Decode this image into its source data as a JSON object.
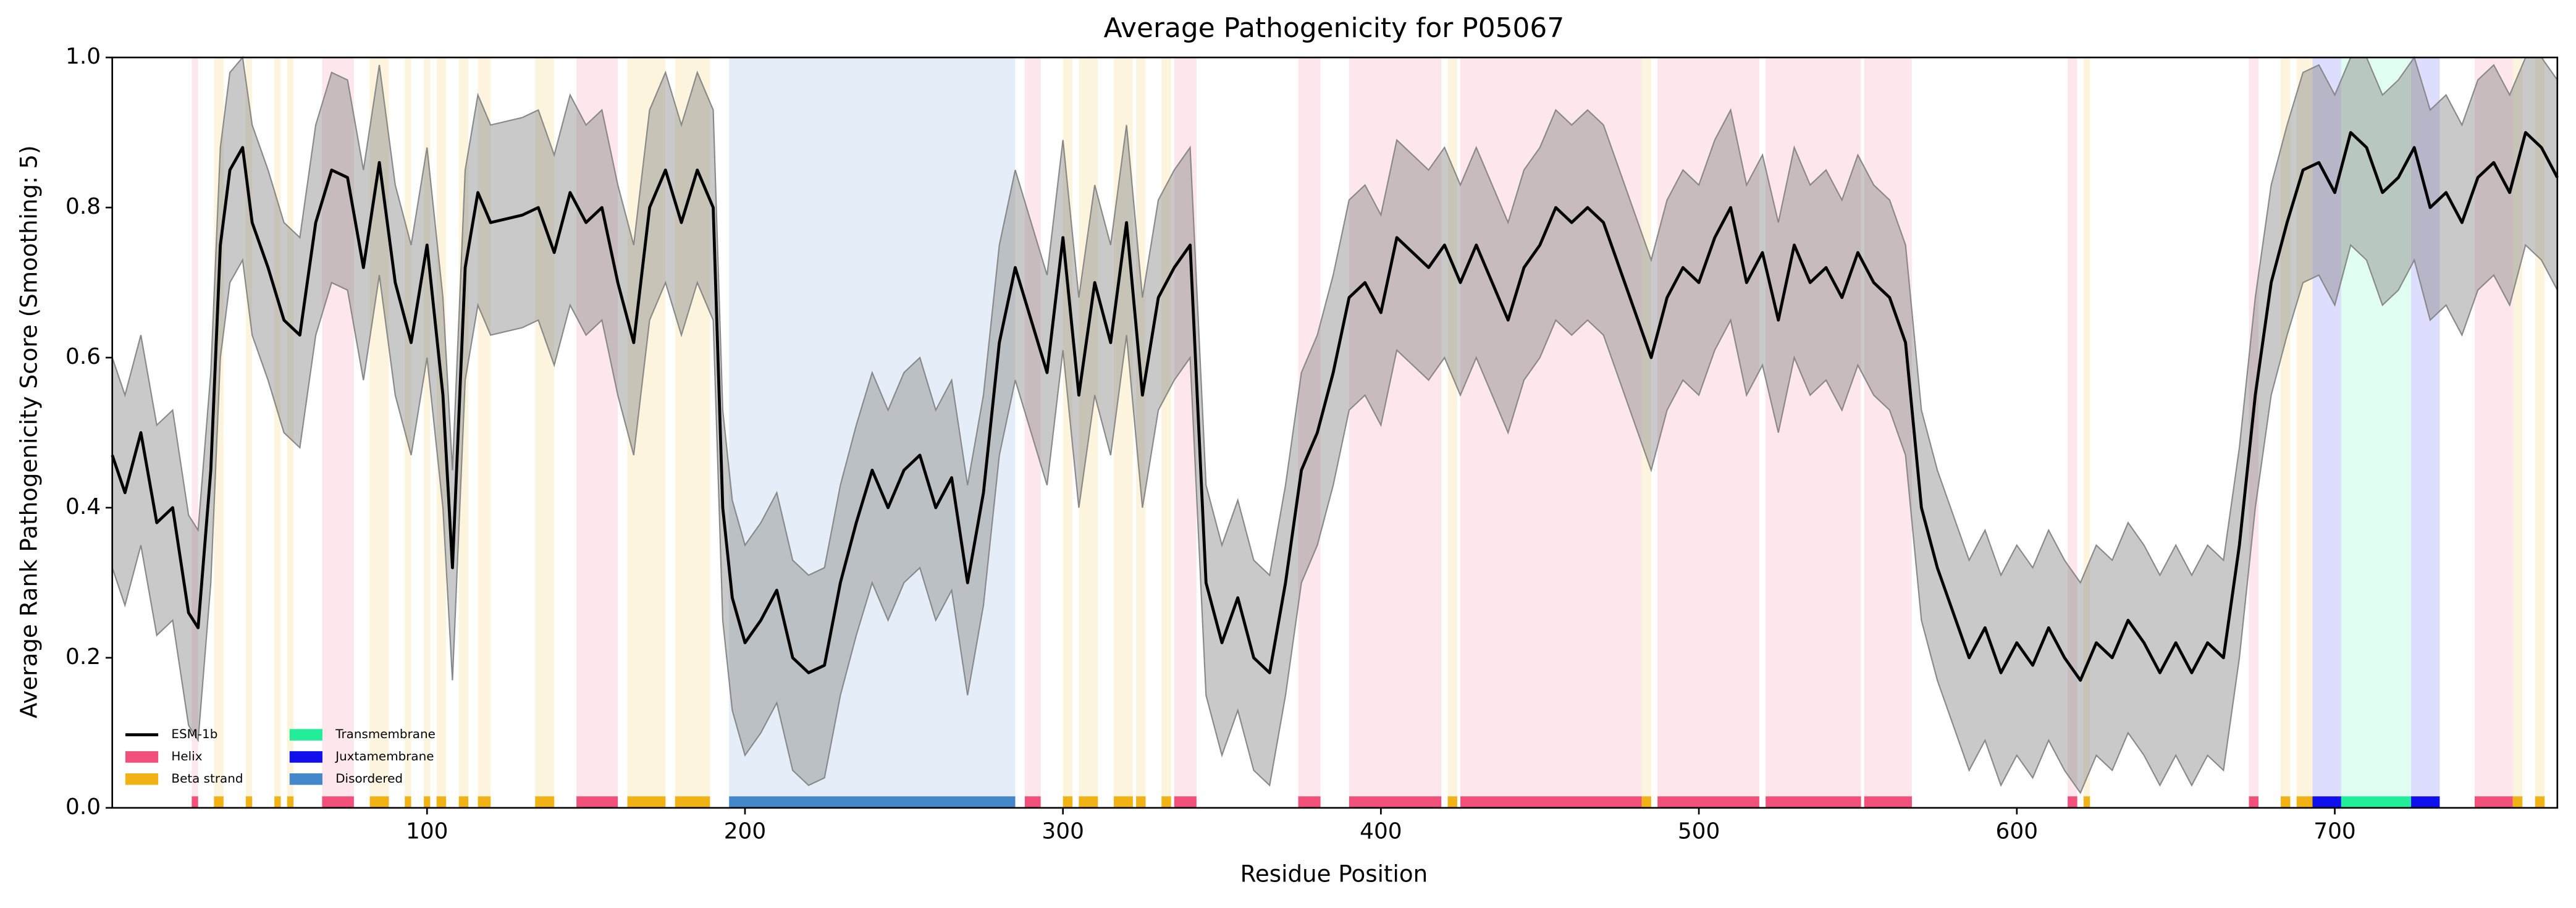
{
  "chart_data": {
    "type": "line",
    "title": "Average Pathogenicity for P05067",
    "xlabel": "Residue Position",
    "ylabel": "Average Rank Pathogenicity Score (Smoothing: 5)",
    "xlim": [
      1,
      770
    ],
    "ylim": [
      0,
      1
    ],
    "xticks": [
      100,
      200,
      300,
      400,
      500,
      600,
      700
    ],
    "yticks": [
      {
        "value": 0,
        "label": "0.0"
      },
      0.2,
      0.4,
      0.6,
      0.8,
      {
        "value": 1,
        "label": "1.0"
      }
    ],
    "legend": "lower left",
    "x": [
      1,
      5,
      10,
      15,
      20,
      25,
      28,
      32,
      35,
      38,
      42,
      45,
      50,
      55,
      60,
      65,
      70,
      75,
      80,
      85,
      90,
      95,
      100,
      105,
      108,
      112,
      116,
      120,
      130,
      135,
      140,
      145,
      150,
      155,
      160,
      165,
      170,
      175,
      180,
      185,
      190,
      193,
      196,
      200,
      205,
      210,
      215,
      220,
      225,
      230,
      235,
      240,
      245,
      250,
      255,
      260,
      265,
      270,
      275,
      280,
      285,
      290,
      295,
      300,
      305,
      310,
      315,
      320,
      325,
      330,
      335,
      340,
      345,
      350,
      355,
      360,
      365,
      370,
      375,
      380,
      385,
      390,
      395,
      400,
      405,
      410,
      415,
      420,
      425,
      430,
      435,
      440,
      445,
      450,
      455,
      460,
      465,
      470,
      475,
      480,
      485,
      490,
      495,
      500,
      505,
      510,
      515,
      520,
      525,
      530,
      535,
      540,
      545,
      550,
      555,
      560,
      565,
      570,
      575,
      580,
      585,
      590,
      595,
      600,
      605,
      610,
      615,
      620,
      625,
      630,
      635,
      640,
      645,
      650,
      655,
      660,
      665,
      670,
      675,
      680,
      685,
      690,
      695,
      700,
      705,
      710,
      715,
      720,
      725,
      730,
      735,
      740,
      745,
      750,
      755,
      760,
      765,
      770
    ],
    "series": [
      {
        "name": "ESM-1b",
        "color": "#000000",
        "values": [
          0.47,
          0.42,
          0.5,
          0.38,
          0.4,
          0.26,
          0.24,
          0.45,
          0.75,
          0.85,
          0.88,
          0.78,
          0.72,
          0.65,
          0.63,
          0.78,
          0.85,
          0.84,
          0.72,
          0.86,
          0.7,
          0.62,
          0.75,
          0.55,
          0.32,
          0.72,
          0.82,
          0.78,
          0.79,
          0.8,
          0.74,
          0.82,
          0.78,
          0.8,
          0.7,
          0.62,
          0.8,
          0.85,
          0.78,
          0.85,
          0.8,
          0.4,
          0.28,
          0.22,
          0.25,
          0.29,
          0.2,
          0.18,
          0.19,
          0.3,
          0.38,
          0.45,
          0.4,
          0.45,
          0.47,
          0.4,
          0.44,
          0.3,
          0.42,
          0.62,
          0.72,
          0.65,
          0.58,
          0.76,
          0.55,
          0.7,
          0.62,
          0.78,
          0.55,
          0.68,
          0.72,
          0.75,
          0.3,
          0.22,
          0.28,
          0.2,
          0.18,
          0.3,
          0.45,
          0.5,
          0.58,
          0.68,
          0.7,
          0.66,
          0.76,
          0.74,
          0.72,
          0.75,
          0.7,
          0.75,
          0.7,
          0.65,
          0.72,
          0.75,
          0.8,
          0.78,
          0.8,
          0.78,
          0.72,
          0.66,
          0.6,
          0.68,
          0.72,
          0.7,
          0.76,
          0.8,
          0.7,
          0.74,
          0.65,
          0.75,
          0.7,
          0.72,
          0.68,
          0.74,
          0.7,
          0.68,
          0.62,
          0.4,
          0.32,
          0.26,
          0.2,
          0.24,
          0.18,
          0.22,
          0.19,
          0.24,
          0.2,
          0.17,
          0.22,
          0.2,
          0.25,
          0.22,
          0.18,
          0.22,
          0.18,
          0.22,
          0.2,
          0.35,
          0.55,
          0.7,
          0.78,
          0.85,
          0.86,
          0.82,
          0.9,
          0.88,
          0.82,
          0.84,
          0.88,
          0.8,
          0.82,
          0.78,
          0.84,
          0.86,
          0.82,
          0.9,
          0.88,
          0.84
        ]
      }
    ],
    "band": {
      "color": "#888888",
      "lower": [
        0.32,
        0.27,
        0.35,
        0.23,
        0.25,
        0.11,
        0.09,
        0.3,
        0.6,
        0.7,
        0.73,
        0.63,
        0.57,
        0.5,
        0.48,
        0.63,
        0.7,
        0.69,
        0.57,
        0.71,
        0.55,
        0.47,
        0.6,
        0.4,
        0.17,
        0.57,
        0.67,
        0.63,
        0.64,
        0.65,
        0.59,
        0.67,
        0.63,
        0.65,
        0.55,
        0.47,
        0.65,
        0.7,
        0.63,
        0.7,
        0.65,
        0.25,
        0.13,
        0.07,
        0.1,
        0.14,
        0.05,
        0.03,
        0.04,
        0.15,
        0.23,
        0.3,
        0.25,
        0.3,
        0.32,
        0.25,
        0.29,
        0.15,
        0.27,
        0.47,
        0.57,
        0.5,
        0.43,
        0.61,
        0.4,
        0.55,
        0.47,
        0.63,
        0.4,
        0.53,
        0.57,
        0.6,
        0.15,
        0.07,
        0.13,
        0.05,
        0.03,
        0.15,
        0.3,
        0.35,
        0.43,
        0.53,
        0.55,
        0.51,
        0.61,
        0.59,
        0.57,
        0.6,
        0.55,
        0.6,
        0.55,
        0.5,
        0.57,
        0.6,
        0.65,
        0.63,
        0.65,
        0.63,
        0.57,
        0.51,
        0.45,
        0.53,
        0.57,
        0.55,
        0.61,
        0.65,
        0.55,
        0.59,
        0.5,
        0.6,
        0.55,
        0.57,
        0.53,
        0.59,
        0.55,
        0.53,
        0.47,
        0.25,
        0.17,
        0.11,
        0.05,
        0.09,
        0.03,
        0.07,
        0.04,
        0.09,
        0.05,
        0.02,
        0.07,
        0.05,
        0.1,
        0.07,
        0.03,
        0.07,
        0.03,
        0.07,
        0.05,
        0.2,
        0.4,
        0.55,
        0.63,
        0.7,
        0.71,
        0.67,
        0.75,
        0.73,
        0.67,
        0.69,
        0.73,
        0.65,
        0.67,
        0.63,
        0.69,
        0.71,
        0.67,
        0.75,
        0.73,
        0.69
      ],
      "upper": [
        0.6,
        0.55,
        0.63,
        0.51,
        0.53,
        0.39,
        0.37,
        0.58,
        0.88,
        0.98,
        1.0,
        0.91,
        0.85,
        0.78,
        0.76,
        0.91,
        0.98,
        0.97,
        0.85,
        0.99,
        0.83,
        0.75,
        0.88,
        0.68,
        0.45,
        0.85,
        0.95,
        0.91,
        0.92,
        0.93,
        0.87,
        0.95,
        0.91,
        0.93,
        0.83,
        0.75,
        0.93,
        0.98,
        0.91,
        0.98,
        0.93,
        0.53,
        0.41,
        0.35,
        0.38,
        0.42,
        0.33,
        0.31,
        0.32,
        0.43,
        0.51,
        0.58,
        0.53,
        0.58,
        0.6,
        0.53,
        0.57,
        0.43,
        0.55,
        0.75,
        0.85,
        0.78,
        0.71,
        0.89,
        0.68,
        0.83,
        0.75,
        0.91,
        0.68,
        0.81,
        0.85,
        0.88,
        0.43,
        0.35,
        0.41,
        0.33,
        0.31,
        0.43,
        0.58,
        0.63,
        0.71,
        0.81,
        0.83,
        0.79,
        0.89,
        0.87,
        0.85,
        0.88,
        0.83,
        0.88,
        0.83,
        0.78,
        0.85,
        0.88,
        0.93,
        0.91,
        0.93,
        0.91,
        0.85,
        0.79,
        0.73,
        0.81,
        0.85,
        0.83,
        0.89,
        0.93,
        0.83,
        0.87,
        0.78,
        0.88,
        0.83,
        0.85,
        0.81,
        0.87,
        0.83,
        0.81,
        0.75,
        0.53,
        0.45,
        0.39,
        0.33,
        0.37,
        0.31,
        0.35,
        0.32,
        0.37,
        0.33,
        0.3,
        0.35,
        0.33,
        0.38,
        0.35,
        0.31,
        0.35,
        0.31,
        0.35,
        0.33,
        0.48,
        0.68,
        0.83,
        0.91,
        0.98,
        0.99,
        0.95,
        1.0,
        1.0,
        0.95,
        0.97,
        1.0,
        0.93,
        0.95,
        0.91,
        0.97,
        0.99,
        0.95,
        1.0,
        1.0,
        0.97
      ]
    },
    "regions": [
      {
        "name": "Helix",
        "color": "#f0507a",
        "spans": [
          [
            26,
            28
          ],
          [
            67,
            77
          ],
          [
            147,
            160
          ],
          [
            288,
            293
          ],
          [
            335,
            342
          ],
          [
            374,
            381
          ],
          [
            390,
            419
          ],
          [
            425,
            482
          ],
          [
            487,
            519
          ],
          [
            521,
            551
          ],
          [
            552,
            567
          ],
          [
            616,
            619
          ],
          [
            673,
            676
          ],
          [
            744,
            756
          ]
        ]
      },
      {
        "name": "Beta strand",
        "color": "#f0b214",
        "spans": [
          [
            33,
            36
          ],
          [
            43,
            45
          ],
          [
            52,
            54
          ],
          [
            56,
            58
          ],
          [
            82,
            88
          ],
          [
            93,
            95
          ],
          [
            99,
            101
          ],
          [
            103,
            106
          ],
          [
            110,
            113
          ],
          [
            116,
            120
          ],
          [
            134,
            140
          ],
          [
            163,
            175
          ],
          [
            178,
            189
          ],
          [
            300,
            303
          ],
          [
            305,
            311
          ],
          [
            316,
            322
          ],
          [
            323,
            326
          ],
          [
            331,
            334
          ],
          [
            421,
            424
          ],
          [
            482,
            485
          ],
          [
            621,
            623
          ],
          [
            683,
            686
          ],
          [
            688,
            693
          ],
          [
            756,
            759
          ],
          [
            763,
            766
          ]
        ]
      },
      {
        "name": "Transmembrane",
        "color": "#22ee99",
        "spans": [
          [
            702,
            724
          ]
        ]
      },
      {
        "name": "Juxtamembrane",
        "color": "#1010ee",
        "spans": [
          [
            693,
            702
          ],
          [
            724,
            733
          ]
        ]
      },
      {
        "name": "Disordered",
        "color": "#4488cc",
        "spans": [
          [
            195,
            285
          ]
        ]
      }
    ]
  }
}
